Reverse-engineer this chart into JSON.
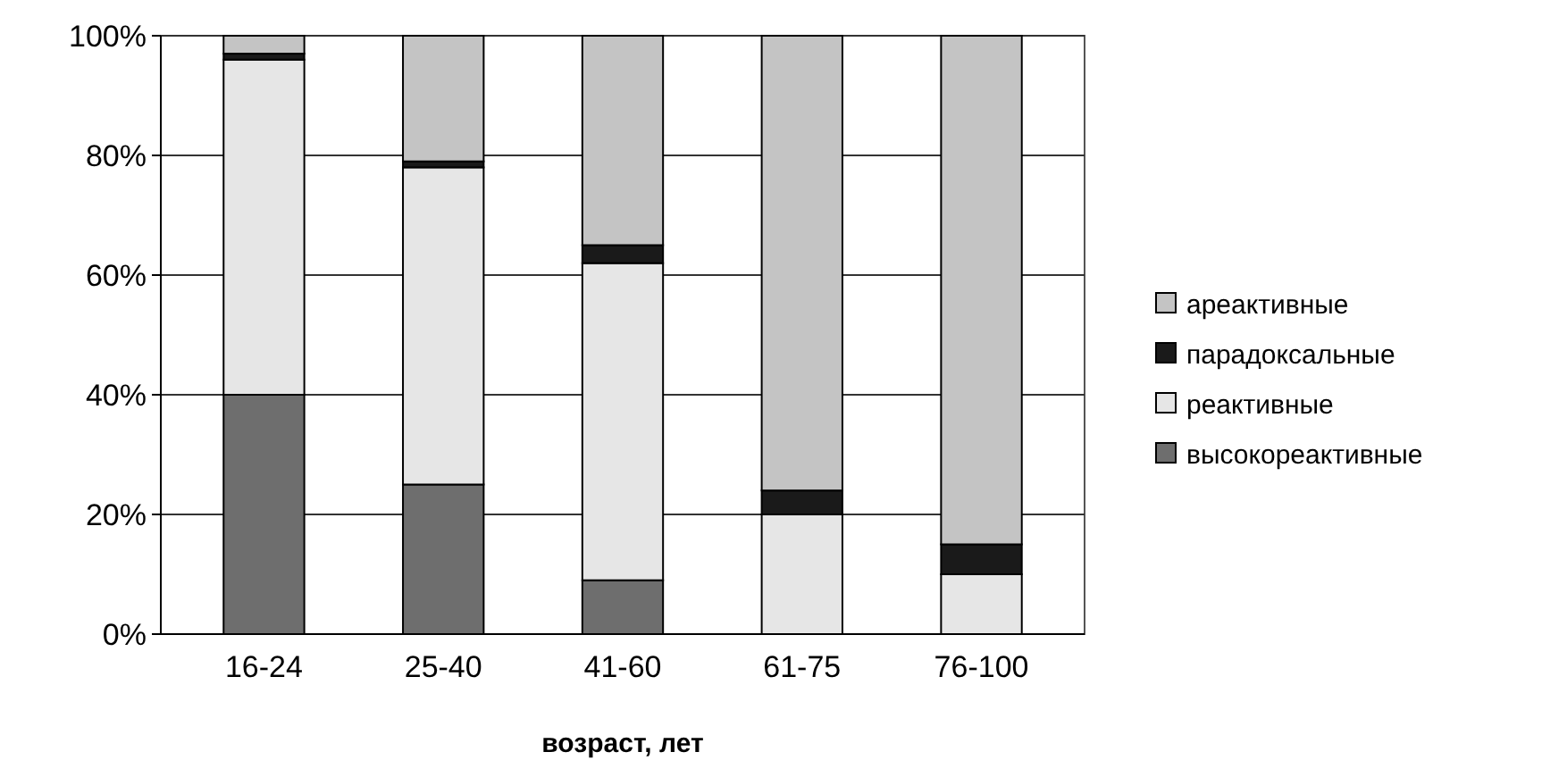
{
  "chart_data": {
    "type": "bar",
    "stacked": true,
    "xlabel": "возраст, лет",
    "categories": [
      "16-24",
      "25-40",
      "41-60",
      "61-75",
      "76-100"
    ],
    "series": [
      {
        "name": "высокореактивные",
        "color": "#6e6e6e",
        "values": [
          40,
          25,
          9,
          0,
          0
        ]
      },
      {
        "name": "реактивные",
        "color": "#e6e6e6",
        "values": [
          56,
          53,
          53,
          20,
          10
        ]
      },
      {
        "name": "парадоксальные",
        "color": "#1a1a1a",
        "values": [
          1,
          1,
          3,
          4,
          5
        ]
      },
      {
        "name": "ареактивные",
        "color": "#c4c4c4",
        "values": [
          3,
          21,
          35,
          76,
          85
        ]
      }
    ],
    "ylim": [
      0,
      100
    ],
    "yticks": [
      {
        "value": 0,
        "label": "0%"
      },
      {
        "value": 20,
        "label": "20%"
      },
      {
        "value": 40,
        "label": "40%"
      },
      {
        "value": 60,
        "label": "60%"
      },
      {
        "value": 80,
        "label": "80%"
      },
      {
        "value": 100,
        "label": "100%"
      }
    ],
    "grid": "y",
    "legend": "right"
  }
}
